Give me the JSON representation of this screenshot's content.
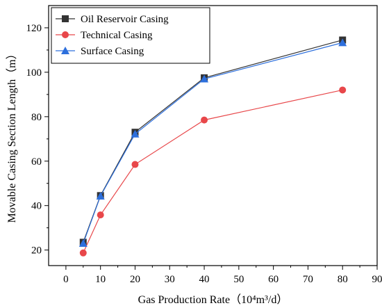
{
  "chart_data": {
    "type": "line",
    "xlabel": "Gas Production Rate（10⁴m³/d）",
    "ylabel": "Movable Casing Section Length（m）",
    "xlim": [
      -5,
      90
    ],
    "ylim": [
      13,
      130
    ],
    "x_ticks": [
      0,
      10,
      20,
      30,
      40,
      50,
      60,
      70,
      80,
      90
    ],
    "y_ticks": [
      20,
      40,
      60,
      80,
      100,
      120
    ],
    "x": [
      5,
      10,
      20,
      40,
      80
    ],
    "series": [
      {
        "name": "Oil Reservoir Casing",
        "values": [
          23.5,
          44.5,
          73.0,
          97.5,
          114.5
        ],
        "color": "#333333",
        "marker": "square"
      },
      {
        "name": "Technical Casing",
        "values": [
          18.7,
          35.8,
          58.5,
          78.5,
          92.0
        ],
        "color": "#e8474a",
        "marker": "circle"
      },
      {
        "name": "Surface Casing",
        "values": [
          23.0,
          44.3,
          72.2,
          97.0,
          113.3
        ],
        "color": "#2d6fdc",
        "marker": "triangle"
      }
    ],
    "legend": {
      "position": "top-left",
      "entries": [
        "Oil Reservoir Casing",
        "Technical Casing",
        "Surface Casing"
      ]
    },
    "grid": false
  }
}
